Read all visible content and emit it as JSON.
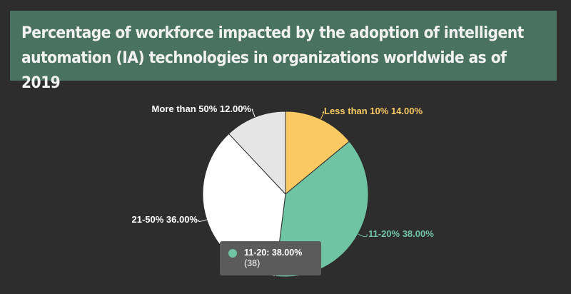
{
  "title": "Percentage of workforce impacted by the adoption of intelligent automation (IA) technologies in organizations worldwide as of 2019",
  "chart_data": {
    "type": "pie",
    "title": "Percentage of workforce impacted by the adoption of intelligent automation (IA) technologies in organizations worldwide as of 2019",
    "slices": [
      {
        "name": "Less than 10%",
        "value": 14,
        "label": "Less than 10% 14.00%",
        "color": "#fbc962",
        "label_color": "#fbc962"
      },
      {
        "name": "11-20%",
        "value": 38,
        "label": "11-20% 38.00%",
        "color": "#6fc4a4",
        "label_color": "#6fc4a4"
      },
      {
        "name": "21-50%",
        "value": 36,
        "label": "21-50% 36.00%",
        "color": "#ffffff",
        "label_color": "#ffffff"
      },
      {
        "name": "More than 50%",
        "value": 12,
        "label": "More than 50% 12.00%",
        "color": "#e5e5e5",
        "label_color": "#ffffff"
      }
    ]
  },
  "tooltip": {
    "text": "11-20: 38.00%",
    "subtext": "(38)",
    "color": "#6fc4a4"
  }
}
